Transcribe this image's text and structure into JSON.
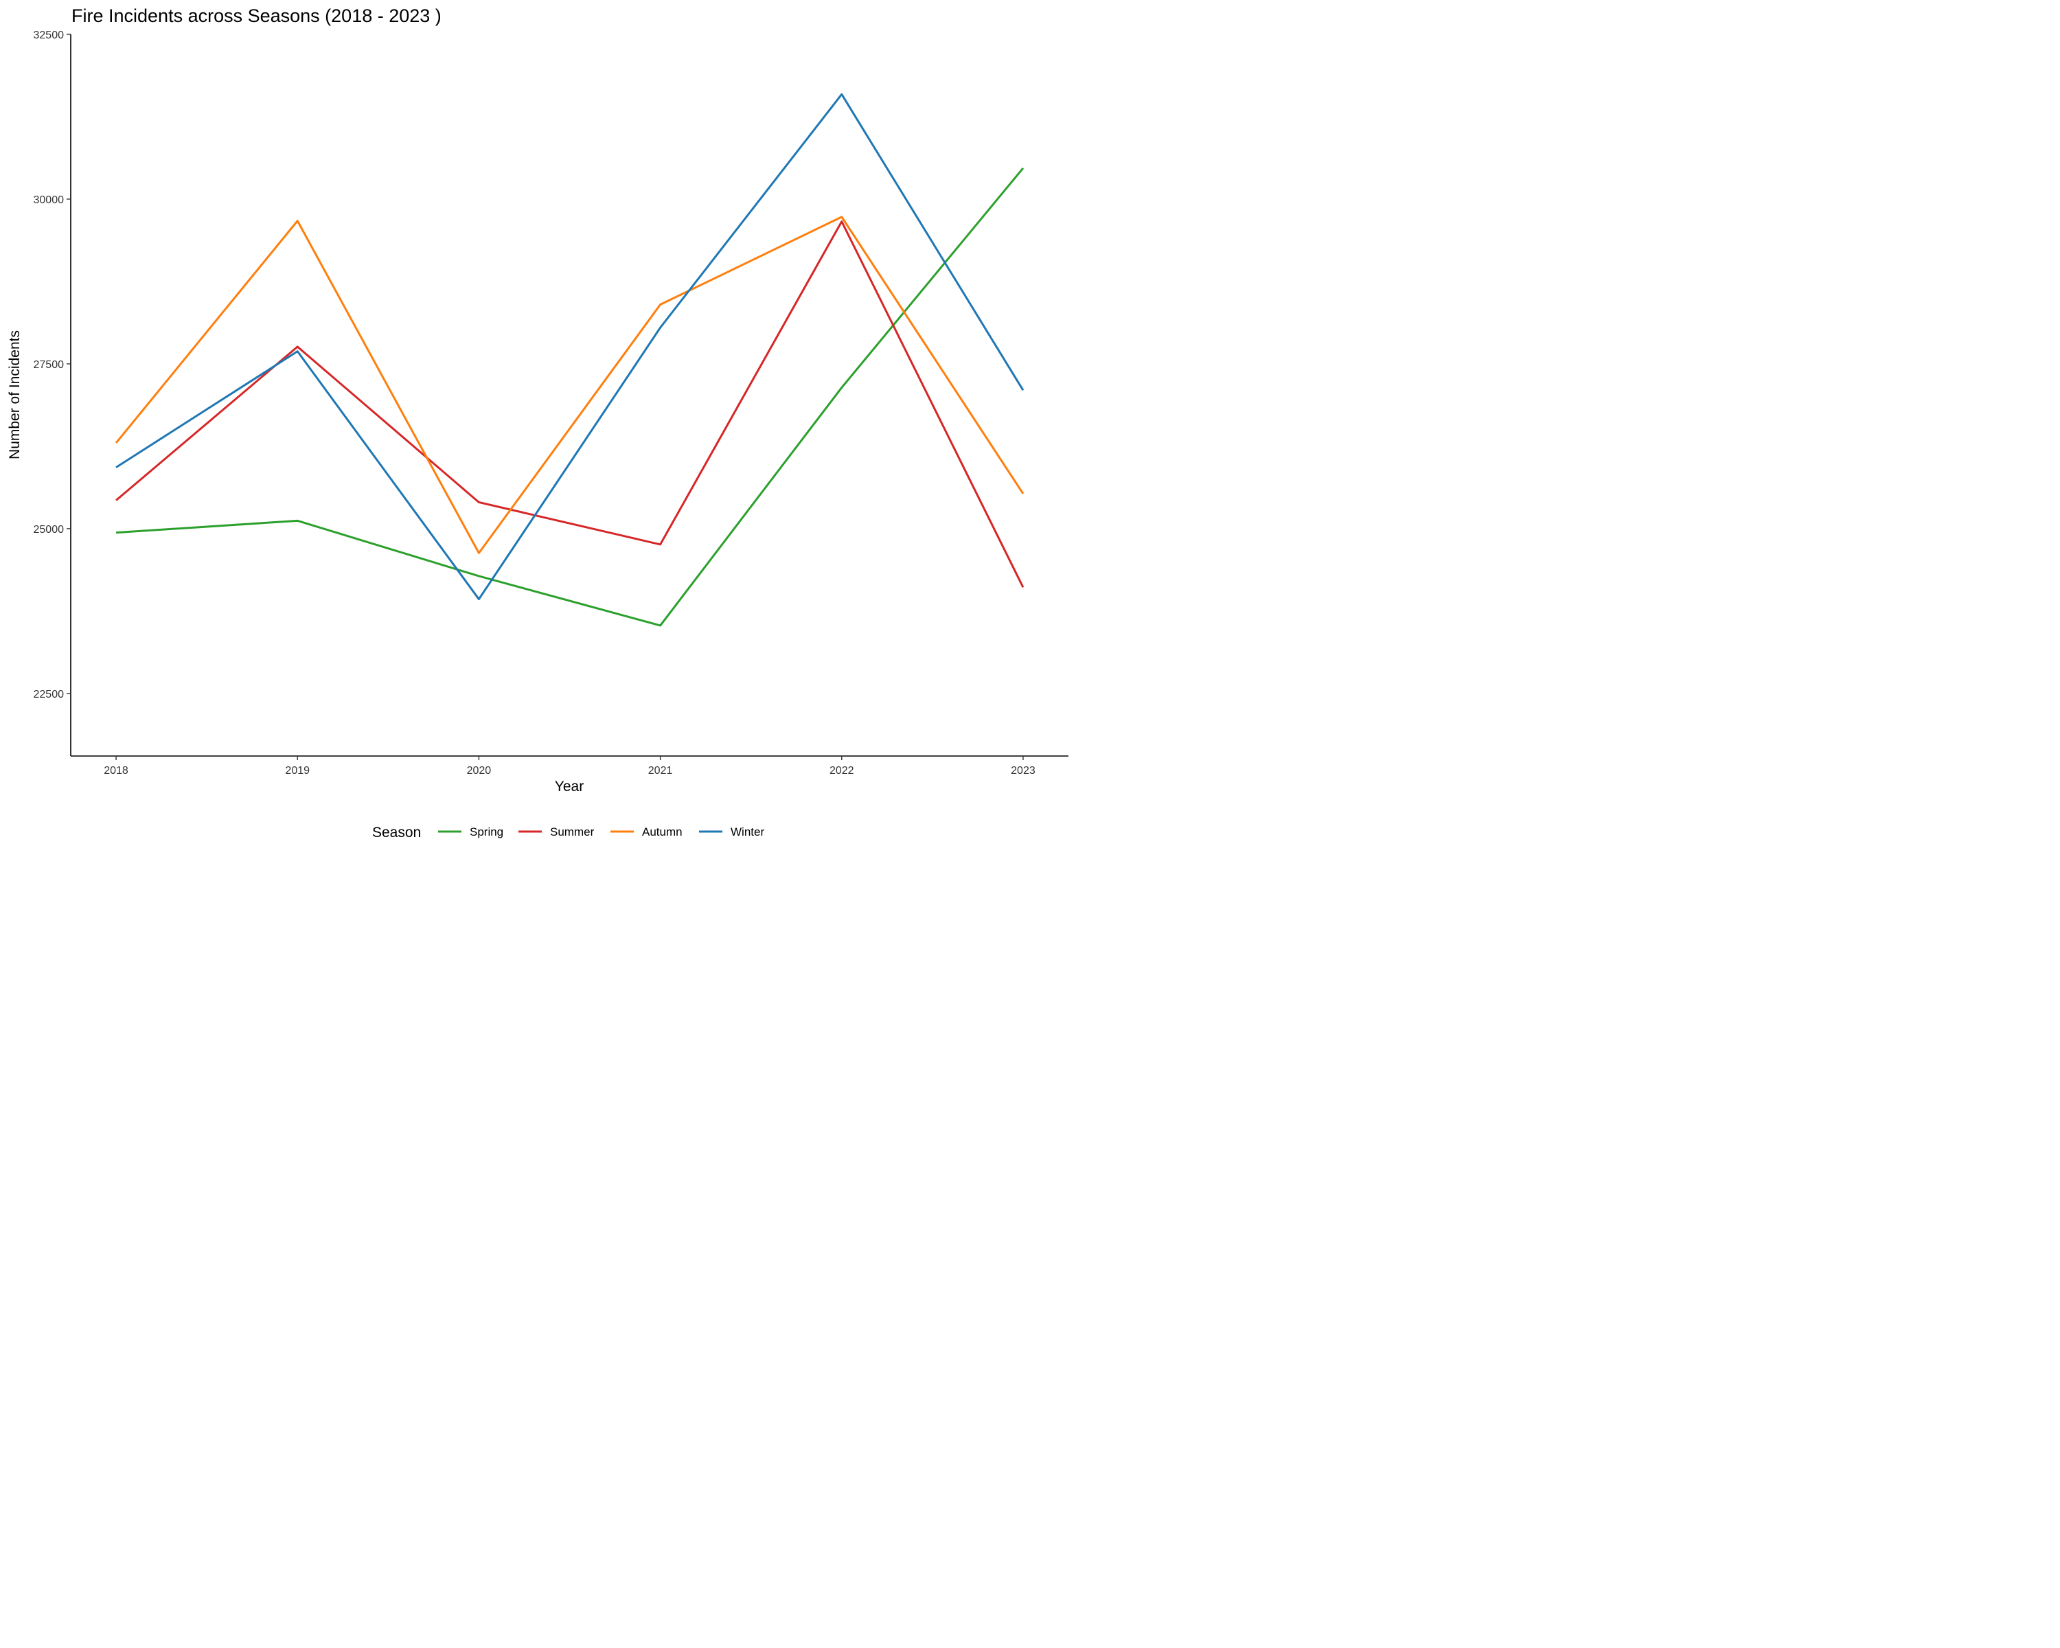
{
  "chart_data": {
    "type": "line",
    "title": "Fire Incidents across Seasons (2018 - 2023 )",
    "xlabel": "Year",
    "ylabel": "Number of Incidents",
    "x": [
      2018,
      2019,
      2020,
      2021,
      2022,
      2023
    ],
    "x_tick_labels": [
      "2018",
      "2019",
      "2020",
      "2021",
      "2022",
      "2023"
    ],
    "xlim": [
      2017.75,
      2023.25
    ],
    "ylim": [
      21550,
      32500
    ],
    "y_ticks": [
      22500,
      25000,
      27500,
      30000,
      32500
    ],
    "y_tick_labels": [
      "22500",
      "25000",
      "27500",
      "30000",
      "32500"
    ],
    "grid": false,
    "legend": {
      "title": "Season",
      "position": "bottom"
    },
    "series": [
      {
        "name": "Spring",
        "color": "#2ca02c",
        "values": [
          24940,
          25120,
          24280,
          23530,
          27140,
          30470
        ]
      },
      {
        "name": "Summer",
        "color": "#d62728",
        "values": [
          25430,
          27760,
          25400,
          24760,
          29660,
          24110
        ]
      },
      {
        "name": "Autumn",
        "color": "#ff7f0e",
        "values": [
          26300,
          29670,
          24630,
          28400,
          29730,
          25530
        ]
      },
      {
        "name": "Winter",
        "color": "#1f77b4",
        "values": [
          25930,
          27690,
          23930,
          28050,
          31590,
          27100
        ]
      }
    ]
  }
}
